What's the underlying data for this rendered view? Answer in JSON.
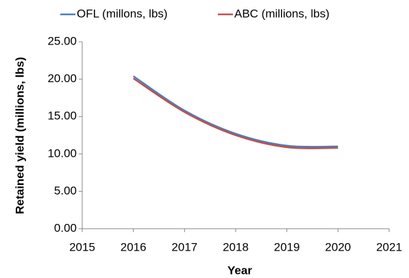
{
  "chart_data": {
    "type": "line",
    "x_label": "Year",
    "y_label": "Retained yield (millions, lbs)",
    "x": [
      2016,
      2017,
      2018,
      2019,
      2020
    ],
    "series": [
      {
        "name": "OFL (millons, lbs)",
        "color": "#4a7ebb",
        "values": [
          20.4,
          15.8,
          12.7,
          11.1,
          11.0
        ]
      },
      {
        "name": "ABC (millions, lbs)",
        "color": "#c0504d",
        "values": [
          20.1,
          15.6,
          12.5,
          10.9,
          10.8
        ]
      }
    ],
    "xlim": [
      2015,
      2021
    ],
    "xticks": [
      2015,
      2016,
      2017,
      2018,
      2019,
      2020,
      2021
    ],
    "ylim": [
      0,
      25
    ],
    "yticks": [
      {
        "value": 0,
        "label": "0.00"
      },
      {
        "value": 5,
        "label": "5.00"
      },
      {
        "value": 10,
        "label": "10.00"
      },
      {
        "value": 15,
        "label": "15.00"
      },
      {
        "value": 20,
        "label": "20.00"
      },
      {
        "value": 25,
        "label": "25.00"
      }
    ],
    "grid": false,
    "legend": "top",
    "smooth": true
  }
}
